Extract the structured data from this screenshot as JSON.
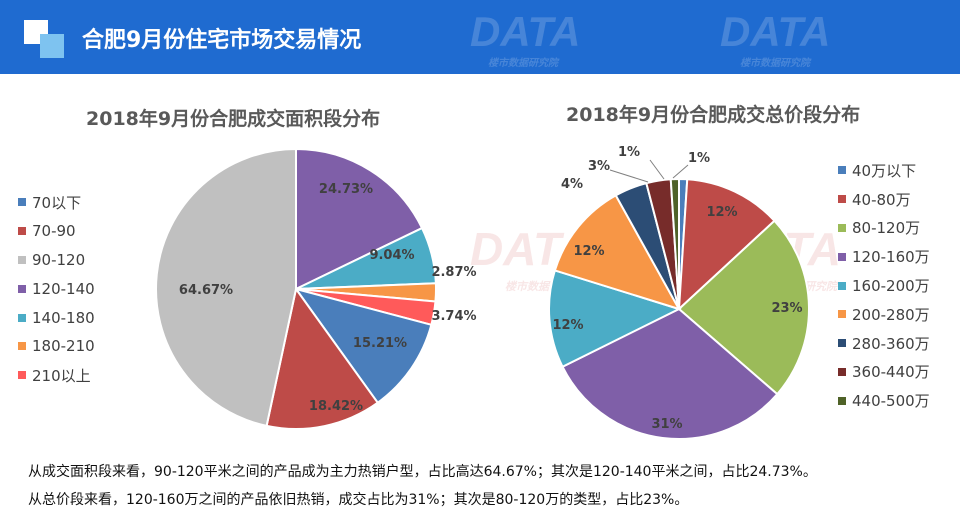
{
  "header": {
    "title": "合肥9月份住宅市场交易情况",
    "watermark_brand": "DATA",
    "watermark_sub": "楼市数据研究院"
  },
  "colors": {
    "header_bg": "#1f6bd0",
    "blue": "#4a7ebb",
    "red": "#be4b48",
    "gray": "#c0c0c0",
    "purple": "#7f5fa8",
    "teal": "#4bacc6",
    "orange": "#f79646",
    "coral": "#ff5a5a",
    "green": "#9bbb59",
    "navy": "#2c4d75",
    "maroon": "#772c2a",
    "olive": "#4f6228"
  },
  "chart_data": [
    {
      "type": "pie",
      "title": "2018年9月份合肥成交面积段分布",
      "categories": [
        "70以下",
        "70-90",
        "90-120",
        "120-140",
        "140-180",
        "180-210",
        "210以上"
      ],
      "values": [
        15.21,
        18.42,
        64.67,
        24.73,
        9.04,
        2.87,
        3.74
      ],
      "labels": [
        "15.21%",
        "18.42%",
        "64.67%",
        "24.73%",
        "9.04%",
        "2.87%",
        "3.74%"
      ],
      "colors": [
        "#4a7ebb",
        "#be4b48",
        "#c0c0c0",
        "#7f5fa8",
        "#4bacc6",
        "#f79646",
        "#ff5a5a"
      ],
      "slice_order": [
        3,
        4,
        5,
        6,
        0,
        1,
        2
      ],
      "legend": "left"
    },
    {
      "type": "pie",
      "title": "2018年9月份合肥成交总价段分布",
      "categories": [
        "40万以下",
        "40-80万",
        "80-120万",
        "120-160万",
        "160-200万",
        "200-280万",
        "280-360万",
        "360-440万",
        "440-500万"
      ],
      "values": [
        1,
        12,
        23,
        31,
        12,
        12,
        4,
        3,
        1
      ],
      "labels": [
        "1%",
        "12%",
        "23%",
        "31%",
        "12%",
        "12%",
        "4%",
        "3%",
        "1%"
      ],
      "colors": [
        "#4a7ebb",
        "#be4b48",
        "#9bbb59",
        "#7f5fa8",
        "#4bacc6",
        "#f79646",
        "#2c4d75",
        "#772c2a",
        "#4f6228"
      ],
      "slice_order": [
        0,
        1,
        2,
        3,
        4,
        5,
        6,
        7,
        8
      ],
      "legend": "right"
    }
  ],
  "footer": {
    "line1": "从成交面积段来看，90-120平米之间的产品成为主力热销户型，占比高达64.67%；其次是120-140平米之间，占比24.73%。",
    "line2": "从总价段来看，120-160万之间的产品依旧热销，成交占比为31%；其次是80-120万的类型，占比23%。"
  }
}
